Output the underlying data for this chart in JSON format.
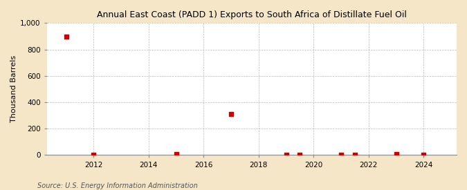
{
  "title": "Annual East Coast (PADD 1) Exports to South Africa of Distillate Fuel Oil",
  "ylabel": "Thousand Barrels",
  "source": "Source: U.S. Energy Information Administration",
  "background_color": "#f5e6c8",
  "plot_background_color": "#ffffff",
  "marker_color": "#cc0000",
  "marker_size": 4,
  "xlim": [
    2010.3,
    2025.2
  ],
  "ylim": [
    0,
    1000
  ],
  "yticks": [
    0,
    200,
    400,
    600,
    800,
    1000
  ],
  "xticks": [
    2012,
    2014,
    2016,
    2018,
    2020,
    2022,
    2024
  ],
  "data_points": [
    [
      2011,
      897
    ],
    [
      2012,
      2
    ],
    [
      2015,
      8
    ],
    [
      2017,
      310
    ],
    [
      2019,
      4
    ],
    [
      2019.5,
      5
    ],
    [
      2021,
      4
    ],
    [
      2021.5,
      5
    ],
    [
      2023,
      6
    ],
    [
      2024,
      5
    ]
  ]
}
